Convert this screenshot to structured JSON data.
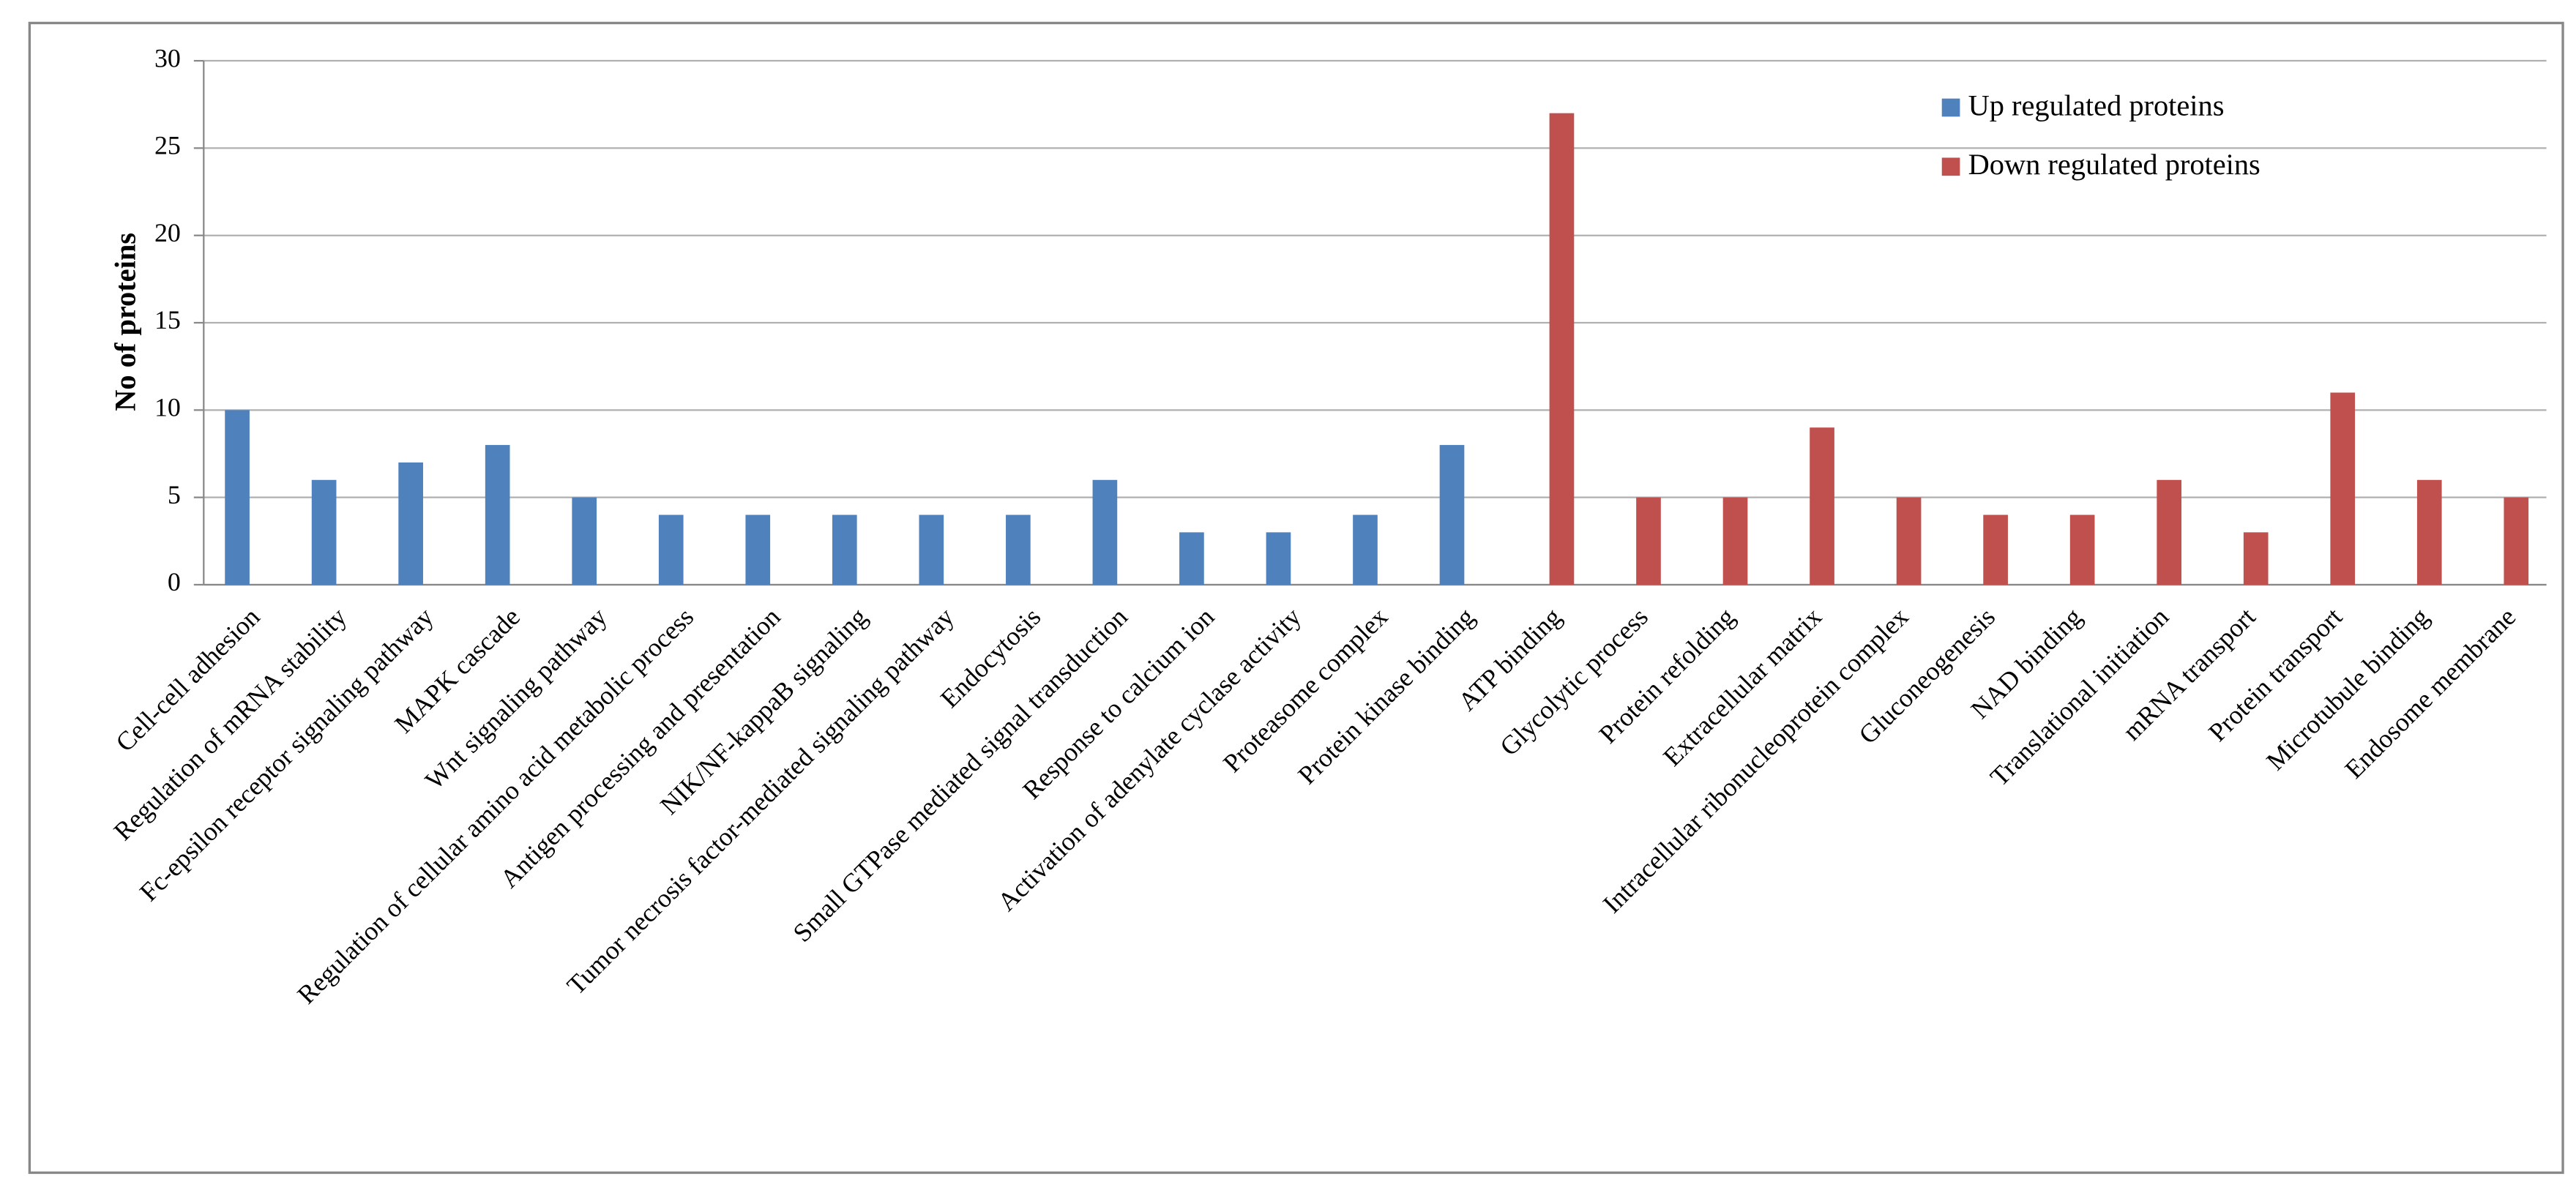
{
  "chart_data": {
    "type": "bar",
    "y_label": "No of proteins",
    "categories": [
      "Cell-cell adhesion",
      "Regulation of mRNA stability",
      "Fc-epsilon receptor signaling pathway",
      "MAPK cascade",
      "Wnt signaling pathway",
      "Regulation of cellular amino acid metabolic process",
      "Antigen processing and presentation",
      "NIK/NF-kappaB signaling",
      "Tumor necrosis factor-mediated signaling pathway",
      "Endocytosis",
      "Small GTPase mediated signal transduction",
      "Response to calcium ion",
      "Activation of adenylate cyclase activity",
      "Proteasome complex",
      "Protein kinase binding",
      "ATP binding",
      "Glycolytic process",
      "Protein refolding",
      "Extracellular matrix",
      "Intracellular ribonucleoprotein complex",
      "Gluconeogenesis",
      "NAD binding",
      "Translational initiation",
      "mRNA transport",
      "Protein transport",
      "Microtubule binding",
      "Endosome membrane"
    ],
    "series": [
      {
        "name": "Up regulated proteins",
        "color": "#4f81bd",
        "values": [
          10,
          6,
          7,
          8,
          5,
          4,
          4,
          4,
          4,
          4,
          6,
          3,
          3,
          4,
          8,
          null,
          null,
          null,
          null,
          null,
          null,
          null,
          null,
          null,
          null,
          null,
          null
        ]
      },
      {
        "name": "Down regulated proteins",
        "color": "#c0504d",
        "values": [
          null,
          null,
          null,
          null,
          null,
          null,
          null,
          null,
          null,
          null,
          null,
          null,
          null,
          null,
          null,
          27,
          5,
          5,
          9,
          5,
          4,
          4,
          6,
          3,
          11,
          6,
          5
        ]
      }
    ],
    "ylim": [
      0,
      30
    ],
    "yticks": [
      0,
      5,
      10,
      15,
      20,
      25,
      30
    ],
    "grid": true
  }
}
